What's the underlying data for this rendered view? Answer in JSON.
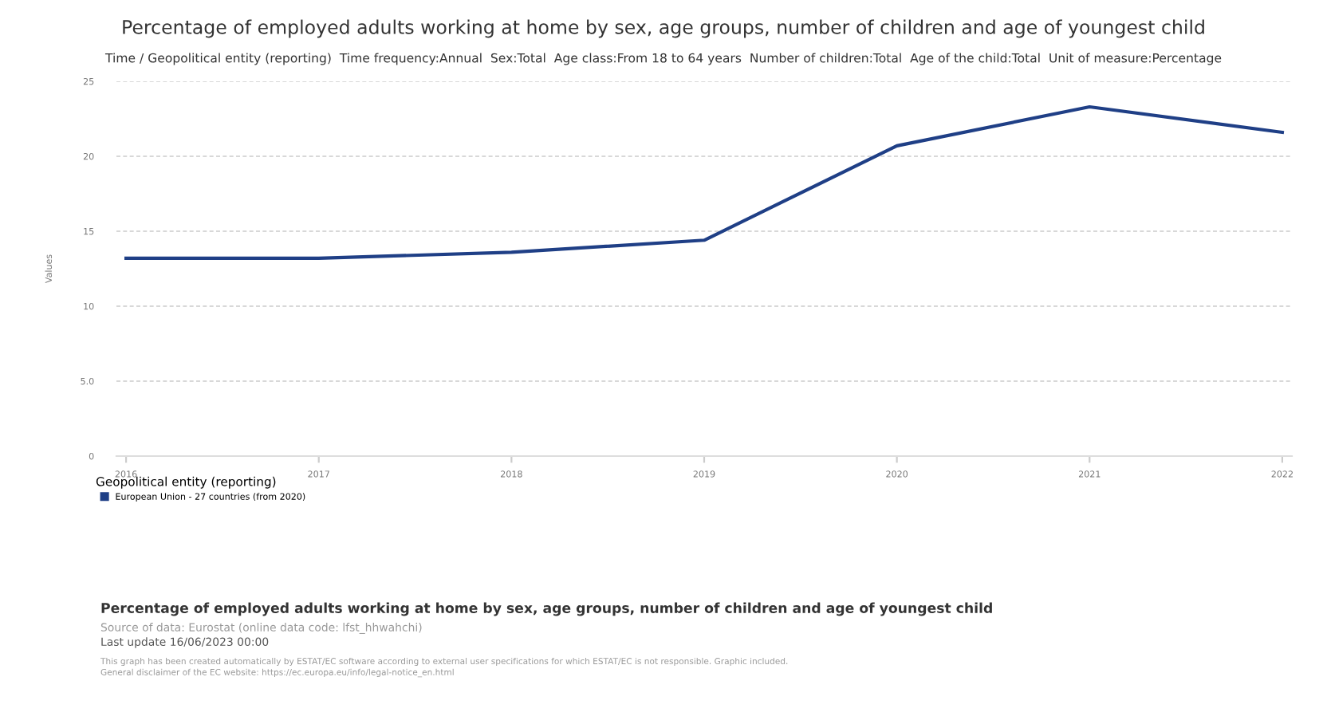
{
  "chart_data": {
    "type": "line",
    "title": "Percentage of employed adults working at home by sex, age groups, number of children and age of youngest child",
    "subtitle": "Time / Geopolitical entity (reporting)  Time frequency:Annual  Sex:Total  Age class:From 18 to 64 years  Number of children:Total  Age of the child:Total  Unit of measure:Percentage",
    "ylabel": "Values",
    "legend_title": "Geopolitical entity (reporting)",
    "categories": [
      "2016",
      "2017",
      "2018",
      "2019",
      "2020",
      "2021",
      "2022"
    ],
    "series": [
      {
        "name": "European Union - 27 countries (from 2020)",
        "color": "#1f3f86",
        "values": [
          13.2,
          13.2,
          13.6,
          14.4,
          20.7,
          23.3,
          21.6
        ]
      }
    ],
    "ylim": [
      0,
      25
    ],
    "yticks": [
      0,
      {
        "value": 5,
        "label": "5.0"
      },
      10,
      15,
      20,
      25
    ],
    "grid": "y",
    "legend": "bottom left",
    "marker": "none",
    "line_style": "solid",
    "annotations": [
      "Percentage of employed adults working at home by sex, age groups, number of children and age of youngest child",
      "Source of data: Eurostat (online data code: lfst_hhwahchi)",
      "Last update 16/06/2023 00:00",
      "This graph has been created automatically by ESTAT/EC software according to external user specifications for which ESTAT/EC is not responsible. Graphic included.",
      "General disclaimer of the EC website: https://ec.europa.eu/info/legal-notice_en.html"
    ]
  }
}
